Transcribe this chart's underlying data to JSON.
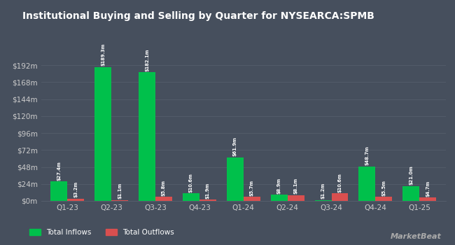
{
  "title": "Institutional Buying and Selling by Quarter for NYSEARCA:SPMB",
  "quarters": [
    "Q1-23",
    "Q2-23",
    "Q3-23",
    "Q4-23",
    "Q1-24",
    "Q2-24",
    "Q3-24",
    "Q4-24",
    "Q1-25"
  ],
  "inflows": [
    27.4,
    189.3,
    182.1,
    10.6,
    61.9,
    8.9,
    1.2,
    48.7,
    21.0
  ],
  "outflows": [
    3.2,
    1.1,
    5.8,
    1.9,
    5.7,
    8.1,
    10.6,
    5.5,
    4.7
  ],
  "inflow_labels": [
    "$27.4m",
    "$189.3m",
    "$182.1m",
    "$10.6m",
    "$61.9m",
    "$8.9m",
    "$1.2m",
    "$48.7m",
    "$21.0m"
  ],
  "outflow_labels": [
    "$3.2m",
    "$1.1m",
    "$5.8m",
    "$1.9m",
    "$5.7m",
    "$8.1m",
    "$10.6m",
    "$5.5m",
    "$4.7m"
  ],
  "inflow_color": "#00c04b",
  "outflow_color": "#d94f4f",
  "bg_color": "#464f5d",
  "text_color": "#ffffff",
  "grid_color": "#555e6b",
  "axis_label_color": "#cccccc",
  "yticks": [
    0,
    24,
    48,
    72,
    96,
    120,
    144,
    168,
    192
  ],
  "ytick_labels": [
    "$0m",
    "$24m",
    "$48m",
    "$72m",
    "$96m",
    "$120m",
    "$144m",
    "$168m",
    "$192m"
  ],
  "ylim": [
    0,
    215
  ],
  "bar_width": 0.38,
  "legend_inflow": "Total Inflows",
  "legend_outflow": "Total Outflows",
  "watermark": "MarketBeat"
}
